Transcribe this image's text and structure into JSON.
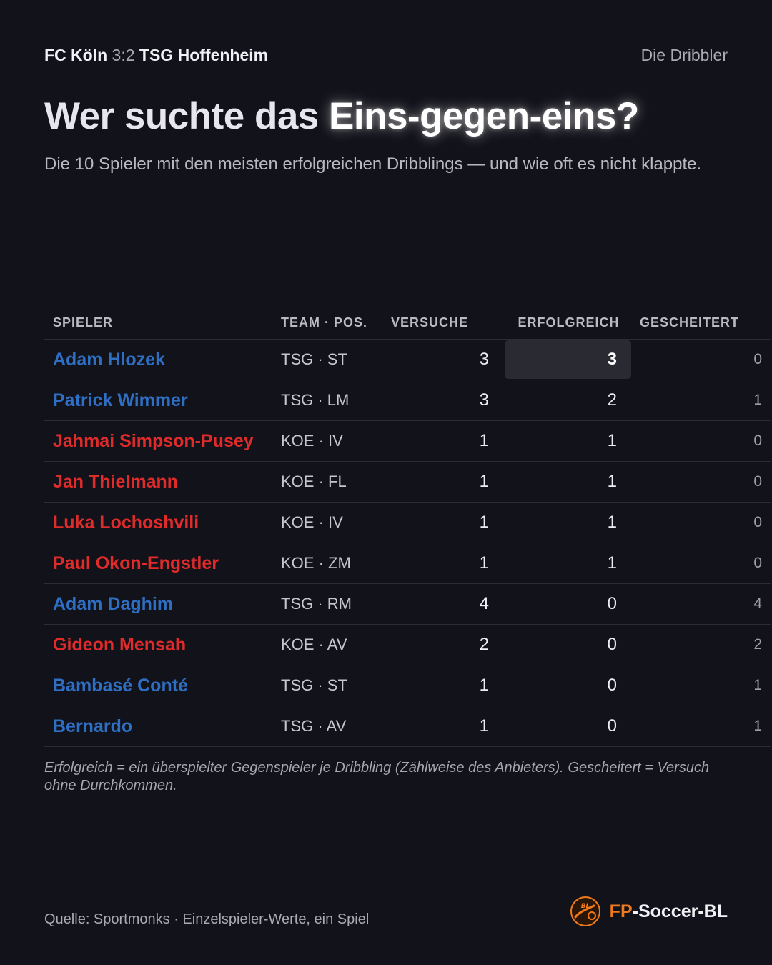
{
  "header": {
    "home_team": "FC Köln",
    "score": "3:2",
    "away_team": "TSG Hoffenheim",
    "kicker": "Die Dribbler"
  },
  "title": {
    "lead": "Wer suchte das ",
    "highlight": "Eins-gegen-eins?"
  },
  "subtitle": "Die 10 Spieler mit den meisten erfolgreichen Dribblings — und wie oft es nicht klappte.",
  "table": {
    "columns": [
      "SPIELER",
      "TEAM · POS.",
      "VERSUCHE",
      "ERFOLGREICH",
      "GESCHEITERT"
    ],
    "rows": [
      {
        "name": "Adam Hlozek",
        "team": "TSG · ST",
        "attempts": "3",
        "successful": "3",
        "failed": "0",
        "club": "tsg"
      },
      {
        "name": "Patrick Wimmer",
        "team": "TSG · LM",
        "attempts": "3",
        "successful": "2",
        "failed": "1",
        "club": "tsg"
      },
      {
        "name": "Jahmai Simpson-Pusey",
        "team": "KOE · IV",
        "attempts": "1",
        "successful": "1",
        "failed": "0",
        "club": "koe"
      },
      {
        "name": "Jan Thielmann",
        "team": "KOE · FL",
        "attempts": "1",
        "successful": "1",
        "failed": "0",
        "club": "koe"
      },
      {
        "name": "Luka Lochoshvili",
        "team": "KOE · IV",
        "attempts": "1",
        "successful": "1",
        "failed": "0",
        "club": "koe"
      },
      {
        "name": "Paul Okon-Engstler",
        "team": "KOE · ZM",
        "attempts": "1",
        "successful": "1",
        "failed": "0",
        "club": "koe"
      },
      {
        "name": "Adam Daghim",
        "team": "TSG · RM",
        "attempts": "4",
        "successful": "0",
        "failed": "4",
        "club": "tsg"
      },
      {
        "name": "Gideon Mensah",
        "team": "KOE · AV",
        "attempts": "2",
        "successful": "0",
        "failed": "2",
        "club": "koe"
      },
      {
        "name": "Bambasé Conté",
        "team": "TSG · ST",
        "attempts": "1",
        "successful": "0",
        "failed": "1",
        "club": "tsg"
      },
      {
        "name": "Bernardo",
        "team": "TSG · AV",
        "attempts": "1",
        "successful": "0",
        "failed": "1",
        "club": "tsg"
      }
    ]
  },
  "note": "Erfolgreich = ein überspielter Gegenspieler je Dribbling (Zählweise des Anbieters). Gescheitert = Versuch ohne Durchkommen.",
  "footer": {
    "source": "Quelle: Sportmonks · Einzelspieler-Werte, ein Spiel",
    "brand_prefix": "FP",
    "brand_rest": "-Soccer-BL",
    "logo_text": "BL"
  },
  "colors": {
    "background": "#12121a",
    "tsg": "#2e6fc4",
    "koe": "#e02b2b",
    "brand_accent": "#f07a1a"
  },
  "icons": [
    "fp-soccer-bl-logo-icon"
  ]
}
